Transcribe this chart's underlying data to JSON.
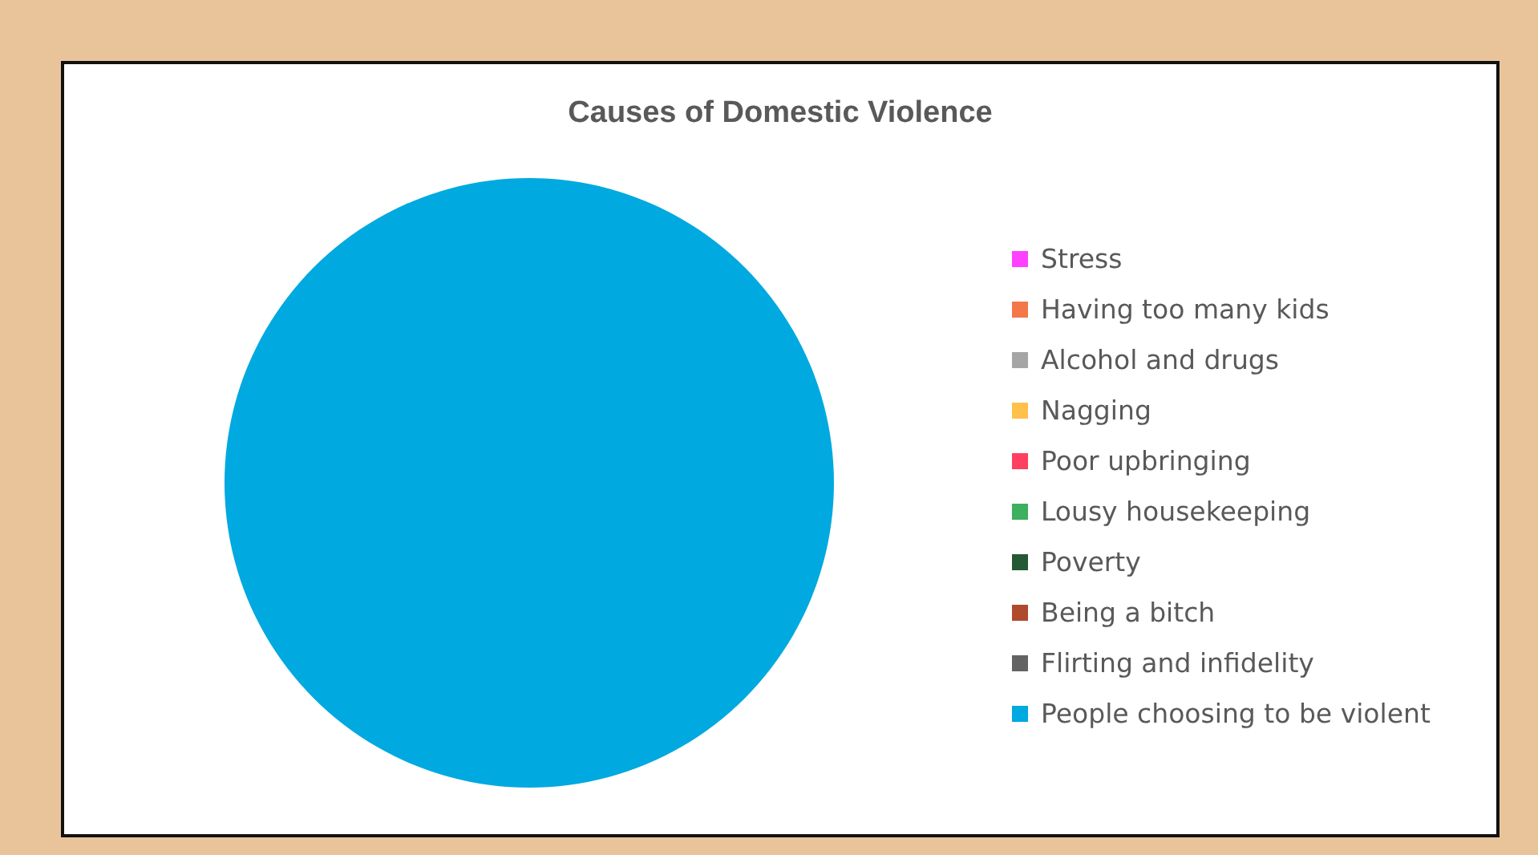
{
  "chart_data": {
    "type": "pie",
    "title": "Causes of Domestic Violence",
    "categories": [
      "Stress",
      "Having too many kids",
      "Alcohol and drugs",
      "Nagging",
      "Poor upbringing",
      "Lousy housekeeping",
      "Poverty",
      "Being a bitch",
      "Flirting and infidelity",
      "People choosing to be violent"
    ],
    "values": [
      0,
      0,
      0,
      0,
      0,
      0,
      0,
      0,
      0,
      100
    ],
    "colors": [
      "#ff40ff",
      "#f4774a",
      "#a5a5a5",
      "#ffc04c",
      "#ff4060",
      "#3cb05c",
      "#245a33",
      "#b04a2c",
      "#636363",
      "#00a9e0"
    ],
    "legend": "right"
  }
}
